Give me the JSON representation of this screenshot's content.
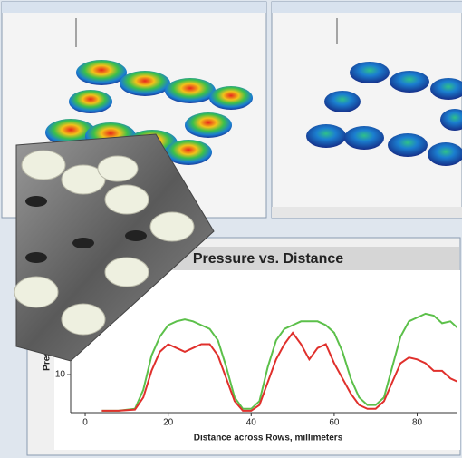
{
  "chart_data": {
    "type": "line",
    "title": "Pressure vs. Distance",
    "xlabel": "Distance across Rows, millimeters",
    "ylabel": "Pres",
    "x": [
      4,
      8,
      12,
      14,
      16,
      18,
      20,
      22,
      24,
      26,
      28,
      30,
      32,
      34,
      36,
      38,
      40,
      42,
      44,
      46,
      48,
      50,
      52,
      54,
      56,
      58,
      60,
      62,
      64,
      66,
      68,
      70,
      72,
      74,
      76,
      78,
      80,
      82,
      84,
      86,
      88,
      90,
      92
    ],
    "series": [
      {
        "color": "#5cc04a",
        "values": [
          0.5,
          0.5,
          1,
          6,
          15,
          20,
          23,
          24,
          24.5,
          24,
          23,
          22,
          19,
          12,
          4,
          1,
          1,
          3,
          12,
          19,
          22,
          23,
          24,
          24,
          24,
          23,
          21,
          16,
          9,
          4,
          2,
          2,
          4,
          12,
          20,
          24,
          25,
          26,
          25.5,
          23.5,
          24,
          22,
          20
        ]
      },
      {
        "color": "#e0302c",
        "values": [
          0.5,
          0.5,
          0.8,
          4,
          11,
          16,
          18,
          17,
          16,
          17,
          18,
          18,
          15,
          9,
          3,
          0.5,
          0.5,
          2,
          8,
          14,
          18,
          21,
          18,
          14,
          17,
          18,
          13,
          9,
          5,
          2,
          1,
          1,
          3,
          8,
          13,
          14.5,
          14,
          13,
          11,
          11,
          9,
          8,
          6
        ]
      }
    ],
    "xlim": [
      -3.5,
      90.8
    ],
    "ylim": [
      0,
      36
    ],
    "xticks": [
      0,
      20,
      40,
      60,
      80
    ],
    "yticks": [
      10
    ]
  }
}
